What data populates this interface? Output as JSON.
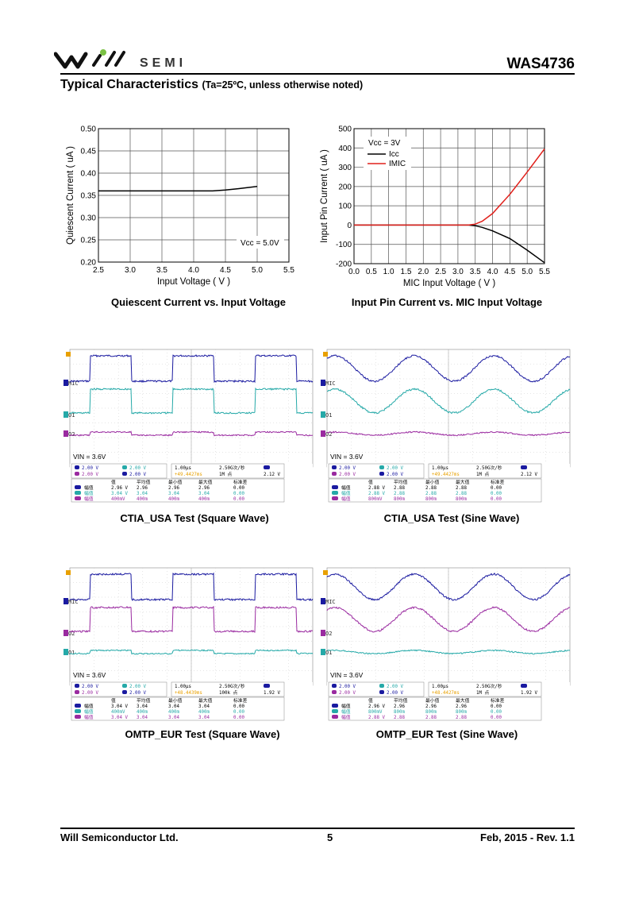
{
  "header": {
    "company_logo_text": "SEMI",
    "part_number": "WAS4736"
  },
  "section": {
    "title": "Typical Characteristics",
    "conditions": "(Ta=25ºC, unless otherwise noted)"
  },
  "charts": {
    "chart1": {
      "caption": "Quiescent Current vs. Input Voltage",
      "xlabel": "Input Voltage ( V )",
      "ylabel": "Quiescent Current ( uA )",
      "annotation": "Vcc = 5.0V",
      "xticks": [
        "2.5",
        "3.0",
        "3.5",
        "4.0",
        "4.5",
        "5.0",
        "5.5"
      ],
      "yticks": [
        "0.50",
        "0.45",
        "0.40",
        "0.35",
        "0.30",
        "0.25",
        "0.20"
      ]
    },
    "chart2": {
      "caption": "Input Pin Current vs. MIC Input Voltage",
      "xlabel": "MIC Input Voltage ( V )",
      "ylabel": "Input Pin Current ( uA )",
      "legend_title": "Vcc = 3V",
      "legend": [
        "Icc",
        "IMIC"
      ],
      "xticks": [
        "0.0",
        "0.5",
        "1.0",
        "1.5",
        "2.0",
        "2.5",
        "3.0",
        "3.5",
        "4.0",
        "4.5",
        "5.0",
        "5.5"
      ],
      "yticks": [
        "500",
        "400",
        "300",
        "200",
        "100",
        "0",
        "-100",
        "-200"
      ]
    }
  },
  "chart_data": [
    {
      "type": "line",
      "xlabel": "Input Voltage ( V )",
      "ylabel": "Quiescent Current ( uA )",
      "xlim": [
        2.5,
        5.5
      ],
      "ylim": [
        0.2,
        0.5
      ],
      "grid": true,
      "series": [
        {
          "x": [
            2.5,
            3.0,
            3.5,
            4.0,
            4.3,
            4.5,
            4.7,
            5.0
          ],
          "y": [
            0.36,
            0.36,
            0.36,
            0.36,
            0.36,
            0.362,
            0.365,
            0.37
          ]
        }
      ]
    },
    {
      "type": "line",
      "xlabel": "MIC Input Voltage ( V )",
      "ylabel": "Input Pin Current ( uA )",
      "xlim": [
        0.0,
        5.5
      ],
      "ylim": [
        -200,
        500
      ],
      "grid": true,
      "legend": "top-left",
      "series": [
        {
          "name": "Icc",
          "color": "#000000",
          "x": [
            0,
            1,
            2,
            3,
            3.3,
            3.5,
            3.7,
            4.0,
            4.5,
            5.0,
            5.5
          ],
          "y": [
            0,
            0,
            0,
            0,
            0,
            -3,
            -12,
            -30,
            -70,
            -130,
            -195
          ]
        },
        {
          "name": "IMIC",
          "color": "#e0201b",
          "x": [
            0,
            1,
            2,
            3,
            3.3,
            3.5,
            3.7,
            4.0,
            4.5,
            5.0,
            5.5
          ],
          "y": [
            0,
            0,
            0,
            0,
            0,
            5,
            20,
            60,
            160,
            275,
            395
          ]
        }
      ]
    }
  ],
  "scopes": [
    {
      "caption_main": "CTIA_USA Test",
      "caption_paren": "(Square Wave)",
      "wave": "square",
      "ch_labels": [
        "MIC",
        "O1",
        "O2"
      ],
      "vin": "VIN = 3.6V",
      "settings": [
        "2.00 V",
        "2.00 V",
        "2.00 V",
        "2.00 V"
      ],
      "timebase": [
        "1.00µs",
        "2.50G次/秒",
        "+49.4427ms",
        "1M 点",
        "2.12 V"
      ],
      "stats_header": [
        "值",
        "平均值",
        "最小值",
        "最大值",
        "标准差"
      ],
      "stats": [
        [
          "幅值",
          "2.96 V",
          "2.96",
          "2.96",
          "2.96",
          "0.00"
        ],
        [
          "幅值",
          "3.04 V",
          "3.04",
          "3.04",
          "3.04",
          "0.00"
        ],
        [
          "幅值",
          "400mV",
          "400m",
          "400m",
          "400m",
          "0.00"
        ]
      ]
    },
    {
      "caption_main": "CTIA_USA Test",
      "caption_paren": "(Sine Wave)",
      "wave": "sine",
      "ch_labels": [
        "MIC",
        "O1",
        "O2"
      ],
      "vin": "VIN = 3.6V",
      "settings": [
        "2.00 V",
        "2.00 V",
        "2.00 V",
        "2.00 V"
      ],
      "timebase": [
        "1.00µs",
        "2.50G次/秒",
        "+49.4427ms",
        "1M 点",
        "2.12 V"
      ],
      "stats_header": [
        "值",
        "平均值",
        "最小值",
        "最大值",
        "标准差"
      ],
      "stats": [
        [
          "幅值",
          "2.88 V",
          "2.88",
          "2.88",
          "2.88",
          "0.00"
        ],
        [
          "幅值",
          "2.88 V",
          "2.88",
          "2.88",
          "2.88",
          "0.00"
        ],
        [
          "幅值",
          "800mV",
          "800m",
          "800m",
          "800m",
          "0.00"
        ]
      ]
    },
    {
      "caption_main": "OMTP_EUR Test",
      "caption_paren": "(Square Wave)",
      "wave": "square",
      "ch_labels": [
        "MIC",
        "O2",
        "O1"
      ],
      "vin": "VIN = 3.6V",
      "settings": [
        "2.00 V",
        "2.00 V",
        "2.00 V",
        "2.00 V"
      ],
      "timebase": [
        "1.00µs",
        "2.50G次/秒",
        "+48.4439ms",
        "100k 点",
        "1.92 V"
      ],
      "stats_header": [
        "值",
        "平均值",
        "最小值",
        "最大值",
        "标准差"
      ],
      "stats": [
        [
          "幅值",
          "3.04 V",
          "3.04",
          "3.04",
          "3.04",
          "0.00"
        ],
        [
          "幅值",
          "400mV",
          "400m",
          "400m",
          "400m",
          "0.00"
        ],
        [
          "幅值",
          "3.04 V",
          "3.04",
          "3.04",
          "3.04",
          "0.00"
        ]
      ]
    },
    {
      "caption_main": "OMTP_EUR Test",
      "caption_paren": "(Sine Wave)",
      "wave": "sine",
      "ch_labels": [
        "MIC",
        "O2",
        "O1"
      ],
      "vin": "VIN = 3.6V",
      "settings": [
        "2.00 V",
        "2.00 V",
        "2.00 V",
        "2.00 V"
      ],
      "timebase": [
        "1.00µs",
        "2.50G次/秒",
        "+48.4427ms",
        "1M 点",
        "1.92 V"
      ],
      "stats_header": [
        "值",
        "平均值",
        "最小值",
        "最大值",
        "标准差"
      ],
      "stats": [
        [
          "幅值",
          "2.96 V",
          "2.96",
          "2.96",
          "2.96",
          "0.00"
        ],
        [
          "幅值",
          "800mV",
          "800m",
          "800m",
          "800m",
          "0.00"
        ],
        [
          "幅值",
          "2.88 V",
          "2.88",
          "2.88",
          "2.88",
          "0.00"
        ]
      ]
    }
  ],
  "footer": {
    "company": "Will Semiconductor Ltd.",
    "page": "5",
    "date_rev": "Feb, 2015 - Rev. 1.1"
  }
}
